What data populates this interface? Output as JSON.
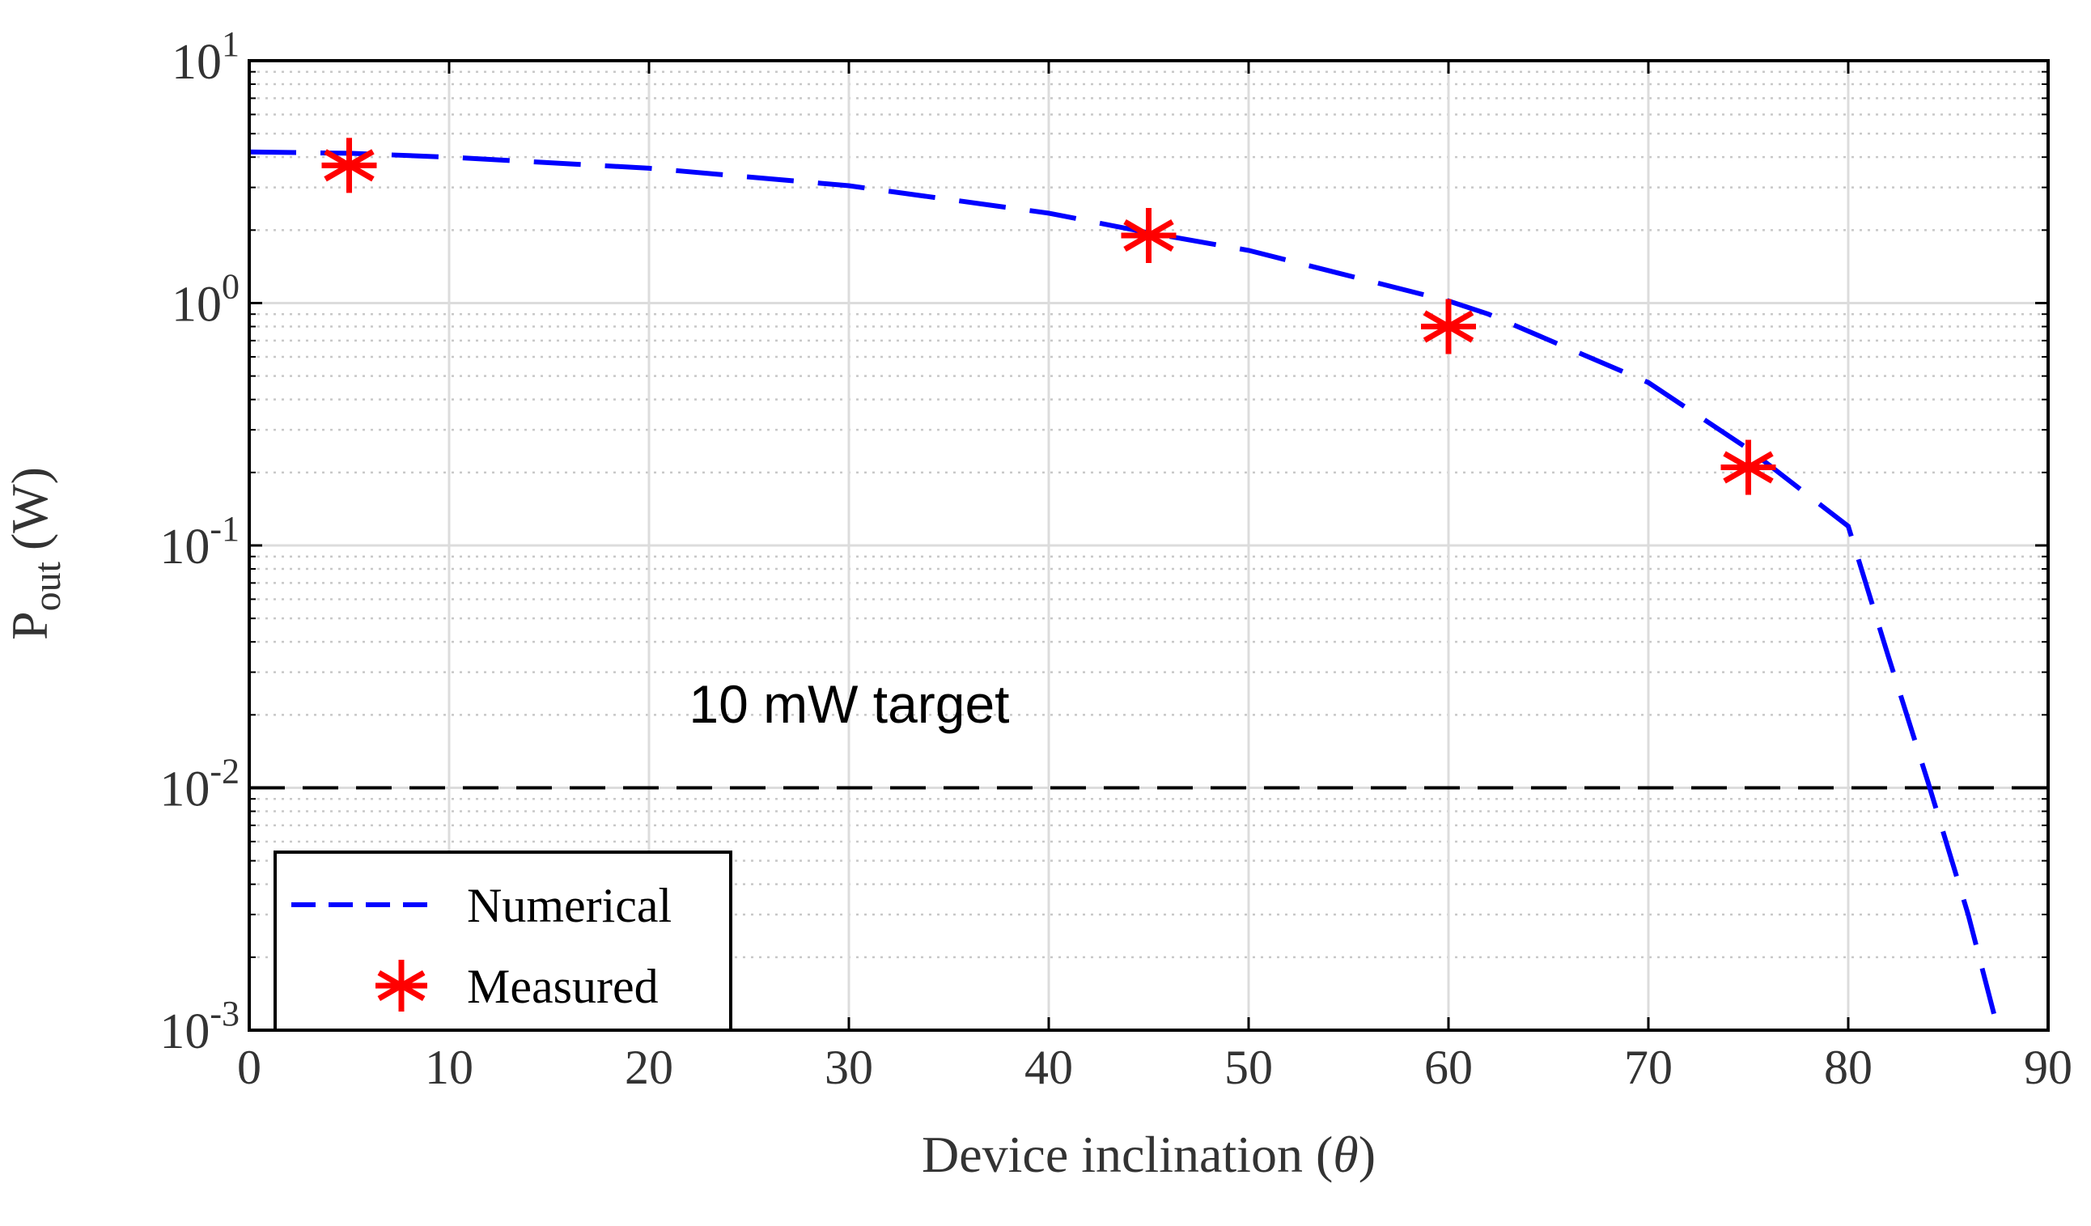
{
  "chart_data": {
    "type": "line",
    "xlabel_prefix": "Device inclination (",
    "xlabel_symbol": "θ",
    "xlabel_suffix": ")",
    "ylabel_main": "P",
    "ylabel_sub": "out",
    "ylabel_unit": "(W)",
    "xlim": [
      0,
      90
    ],
    "ylim": [
      0.001,
      10
    ],
    "yscale": "log",
    "grid": true,
    "x_ticks": [
      {
        "value": 0,
        "label": "0"
      },
      {
        "value": 10,
        "label": "10"
      },
      {
        "value": 20,
        "label": "20"
      },
      {
        "value": 30,
        "label": "30"
      },
      {
        "value": 40,
        "label": "40"
      },
      {
        "value": 50,
        "label": "50"
      },
      {
        "value": 60,
        "label": "60"
      },
      {
        "value": 70,
        "label": "70"
      },
      {
        "value": 80,
        "label": "80"
      },
      {
        "value": 90,
        "label": "90"
      }
    ],
    "y_ticks": [
      {
        "value": 10,
        "base": "10",
        "exp": "1"
      },
      {
        "value": 1,
        "base": "10",
        "exp": "0"
      },
      {
        "value": 0.1,
        "base": "10",
        "exp": "-1"
      },
      {
        "value": 0.01,
        "base": "10",
        "exp": "-2"
      },
      {
        "value": 0.001,
        "base": "10",
        "exp": "-3"
      }
    ],
    "series": [
      {
        "name": "Numerical",
        "style": "dashed",
        "color": "#0000ff",
        "x": [
          0,
          5,
          10,
          20,
          30,
          40,
          45,
          50,
          60,
          62,
          70,
          75,
          80,
          82,
          84,
          86,
          87.5
        ],
        "y": [
          4.2,
          4.15,
          4.0,
          3.6,
          3.05,
          2.35,
          1.95,
          1.65,
          1.02,
          0.9,
          0.47,
          0.25,
          0.12,
          0.035,
          0.0105,
          0.003,
          0.001
        ]
      },
      {
        "name": "Measured",
        "style": "asterisk",
        "color": "#ff0000",
        "x": [
          5,
          45,
          60,
          75
        ],
        "y": [
          3.7,
          1.9,
          0.8,
          0.21
        ]
      }
    ],
    "reference_line": {
      "y": 0.01,
      "color": "#000000",
      "label": "10 mW target",
      "label_x": 22,
      "label_y": 0.022
    },
    "legend": {
      "placement": "bottom-left",
      "entries": [
        "Numerical",
        "Measured"
      ]
    }
  }
}
